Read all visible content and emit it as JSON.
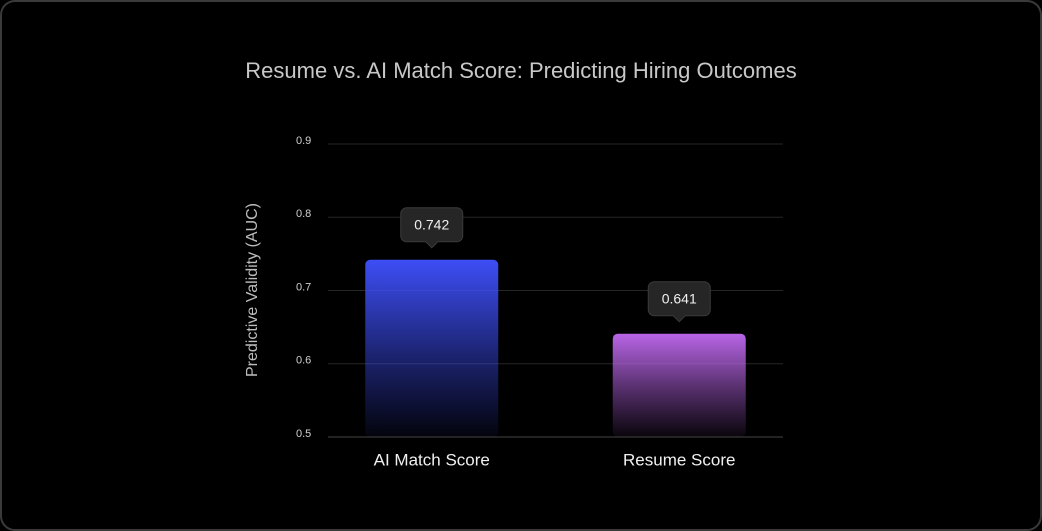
{
  "chart_data": {
    "type": "bar",
    "title": "Resume vs. AI Match Score: Predicting Hiring Outcomes",
    "y_label": "Predictive Validity (AUC)",
    "categories": [
      "AI Match Score",
      "Resume Score"
    ],
    "values": [
      0.742,
      0.641
    ],
    "colors": [
      "#3d4ef5",
      "#b865e6"
    ],
    "ylim": [
      0.5,
      0.9
    ],
    "yticks": [
      0.5,
      0.6,
      0.7,
      0.8,
      0.9
    ],
    "grid": true
  }
}
